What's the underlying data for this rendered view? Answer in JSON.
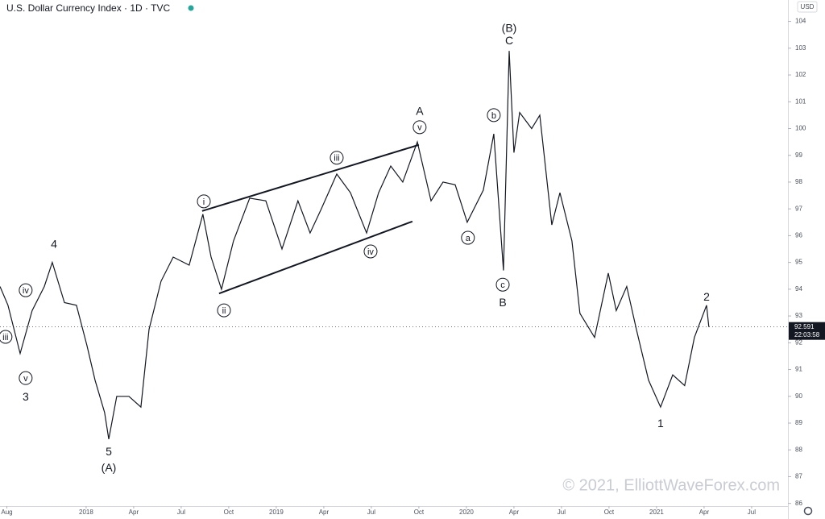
{
  "chart_data": {
    "type": "line",
    "title": "U.S. Dollar Currency Index · 1D · TVC",
    "currency": "USD",
    "watermark": "© 2021, ElliottWaveForex.com",
    "countdown": "22:03:58",
    "color": "#131722",
    "grid": false,
    "x": [
      2017.547,
      2017.589,
      2017.653,
      2017.716,
      2017.78,
      2017.822,
      2017.886,
      2017.949,
      2018.004,
      2018.047,
      2018.097,
      2018.119,
      2018.161,
      2018.225,
      2018.288,
      2018.331,
      2018.394,
      2018.458,
      2018.542,
      2018.614,
      2018.657,
      2018.712,
      2018.775,
      2018.86,
      2018.945,
      2019.03,
      2019.114,
      2019.178,
      2019.237,
      2019.318,
      2019.39,
      2019.475,
      2019.538,
      2019.602,
      2019.665,
      2019.742,
      2019.814,
      2019.877,
      2019.941,
      2020.004,
      2020.089,
      2020.144,
      2020.195,
      2020.225,
      2020.25,
      2020.28,
      2020.343,
      2020.386,
      2020.449,
      2020.492,
      2020.555,
      2020.597,
      2020.674,
      2020.746,
      2020.788,
      2020.843,
      2020.894,
      2020.958,
      2021.021,
      2021.085,
      2021.148,
      2021.199,
      2021.263,
      2021.275
    ],
    "values": [
      94.1,
      93.4,
      91.6,
      93.2,
      94.1,
      95.0,
      93.5,
      93.4,
      91.9,
      90.6,
      89.4,
      88.4,
      90.0,
      90.0,
      89.6,
      92.5,
      94.3,
      95.2,
      94.9,
      96.8,
      95.2,
      94.0,
      95.8,
      97.4,
      97.3,
      95.5,
      97.3,
      96.1,
      97.0,
      98.3,
      97.6,
      96.1,
      97.6,
      98.6,
      98.0,
      99.5,
      97.3,
      98.0,
      97.9,
      96.5,
      97.7,
      99.8,
      94.7,
      102.9,
      99.1,
      100.6,
      100.0,
      100.5,
      96.4,
      97.6,
      95.8,
      93.1,
      92.2,
      94.6,
      93.2,
      94.1,
      92.5,
      90.6,
      89.6,
      90.8,
      90.4,
      92.2,
      93.4,
      92.591
    ],
    "xlim": [
      2017.547,
      2021.691
    ],
    "ylim": [
      85.9,
      104.8
    ],
    "yticks": [
      86,
      87,
      88,
      89,
      90,
      91,
      92,
      93,
      94,
      95,
      96,
      97,
      98,
      99,
      100,
      101,
      102,
      103,
      104
    ],
    "xticks": [
      {
        "value": 2017.583,
        "label": "Aug"
      },
      {
        "value": 2018,
        "label": "2018"
      },
      {
        "value": 2018.25,
        "label": "Apr"
      },
      {
        "value": 2018.5,
        "label": "Jul"
      },
      {
        "value": 2018.75,
        "label": "Oct"
      },
      {
        "value": 2019,
        "label": "2019"
      },
      {
        "value": 2019.25,
        "label": "Apr"
      },
      {
        "value": 2019.5,
        "label": "Jul"
      },
      {
        "value": 2019.75,
        "label": "Oct"
      },
      {
        "value": 2020,
        "label": "2020"
      },
      {
        "value": 2020.25,
        "label": "Apr"
      },
      {
        "value": 2020.5,
        "label": "Jul"
      },
      {
        "value": 2020.75,
        "label": "Oct"
      },
      {
        "value": 2021,
        "label": "2021"
      },
      {
        "value": 2021.25,
        "label": "Apr"
      },
      {
        "value": 2021.5,
        "label": "Jul"
      }
    ],
    "channel": [
      {
        "x": [
          2018.61,
          2019.75
        ],
        "y": [
          96.92,
          99.39
        ]
      },
      {
        "x": [
          2018.699,
          2019.716
        ],
        "y": [
          93.84,
          96.53
        ]
      }
    ],
    "annotations": [
      {
        "text": "iii",
        "x": 2017.576,
        "y": 92.22,
        "circled": true
      },
      {
        "text": "iv",
        "x": 2017.682,
        "y": 93.96,
        "circled": true
      },
      {
        "text": "v",
        "x": 2017.682,
        "y": 90.68,
        "circled": true
      },
      {
        "text": "3",
        "x": 2017.682,
        "y": 89.99,
        "circled": false
      },
      {
        "text": "4",
        "x": 2017.831,
        "y": 95.68,
        "circled": false
      },
      {
        "text": "5",
        "x": 2018.119,
        "y": 87.94,
        "circled": false
      },
      {
        "text": "(A)",
        "x": 2018.119,
        "y": 87.33,
        "circled": false
      },
      {
        "text": "i",
        "x": 2018.619,
        "y": 97.28,
        "circled": true
      },
      {
        "text": "ii",
        "x": 2018.725,
        "y": 93.21,
        "circled": true
      },
      {
        "text": "iii",
        "x": 2019.318,
        "y": 98.91,
        "circled": true
      },
      {
        "text": "iv",
        "x": 2019.496,
        "y": 95.41,
        "circled": true
      },
      {
        "text": "A",
        "x": 2019.754,
        "y": 100.65,
        "circled": false
      },
      {
        "text": "v",
        "x": 2019.754,
        "y": 100.05,
        "circled": true
      },
      {
        "text": "a",
        "x": 2020.008,
        "y": 95.92,
        "circled": true
      },
      {
        "text": "b",
        "x": 2020.144,
        "y": 100.5,
        "circled": true
      },
      {
        "text": "c",
        "x": 2020.191,
        "y": 94.17,
        "circled": true
      },
      {
        "text": "B",
        "x": 2020.191,
        "y": 93.51,
        "circled": false
      },
      {
        "text": "(B)",
        "x": 2020.225,
        "y": 103.76,
        "circled": false
      },
      {
        "text": "C",
        "x": 2020.225,
        "y": 103.28,
        "circled": false
      },
      {
        "text": "1",
        "x": 2021.021,
        "y": 88.99,
        "circled": false
      },
      {
        "text": "2",
        "x": 2021.263,
        "y": 93.72,
        "circled": false
      }
    ]
  }
}
